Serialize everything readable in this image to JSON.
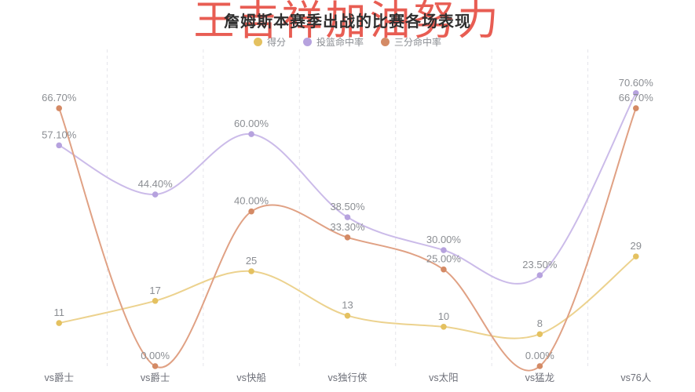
{
  "title": "詹姆斯本赛季出战的比赛各场表现",
  "watermark": "王吉祥加油努力",
  "colors": {
    "title": "#2f2f2f",
    "watermark": "#e43a2e",
    "data_label": "#8b8e93",
    "axis_label": "#6e7079",
    "grid_line": "#dcdce4"
  },
  "legend": {
    "items": [
      {
        "label": "得分",
        "color": "#e4c160"
      },
      {
        "label": "投篮命中率",
        "color": "#b6a2de"
      },
      {
        "label": "三分命中率",
        "color": "#d48a65"
      }
    ]
  },
  "chart_data": {
    "type": "line",
    "smooth": true,
    "title": "詹姆斯本赛季出战的比赛各场表现",
    "legend_position": "top",
    "grid": "vertical-dashed-splitlines",
    "categories": [
      "vs爵士",
      "vs爵士",
      "vs快船",
      "vs独行侠",
      "vs太阳",
      "vs猛龙",
      "vs76人"
    ],
    "series": [
      {
        "name": "得分",
        "semantic": "points",
        "axis": "points",
        "color": "#e4c160",
        "line_color": "#ecd28e",
        "values": [
          11,
          17,
          25,
          13,
          10,
          8,
          29
        ],
        "labels": [
          "11",
          "17",
          "25",
          "13",
          "10",
          "8",
          "29"
        ]
      },
      {
        "name": "投篮命中率",
        "semantic": "fg-pct",
        "axis": "percent",
        "color": "#b6a2de",
        "line_color": "#cbbbe9",
        "values": [
          57.1,
          44.4,
          60.0,
          38.5,
          30.0,
          23.5,
          70.6
        ],
        "labels": [
          "57.10%",
          "44.40%",
          "60.00%",
          "38.50%",
          "30.00%",
          "23.50%",
          "70.60%"
        ]
      },
      {
        "name": "三分命中率",
        "semantic": "3pt-pct",
        "axis": "percent",
        "color": "#d48a65",
        "line_color": "#e0a184",
        "values": [
          66.7,
          0.0,
          40.0,
          33.3,
          25.0,
          0.0,
          66.7
        ],
        "labels": [
          "66.70%",
          "0.00%",
          "40.00%",
          "33.30%",
          "25.00%",
          "0.00%",
          "66.70%"
        ]
      }
    ],
    "y_axes": [
      {
        "name": "points",
        "visible": false
      },
      {
        "name": "percent",
        "visible": false
      }
    ]
  }
}
